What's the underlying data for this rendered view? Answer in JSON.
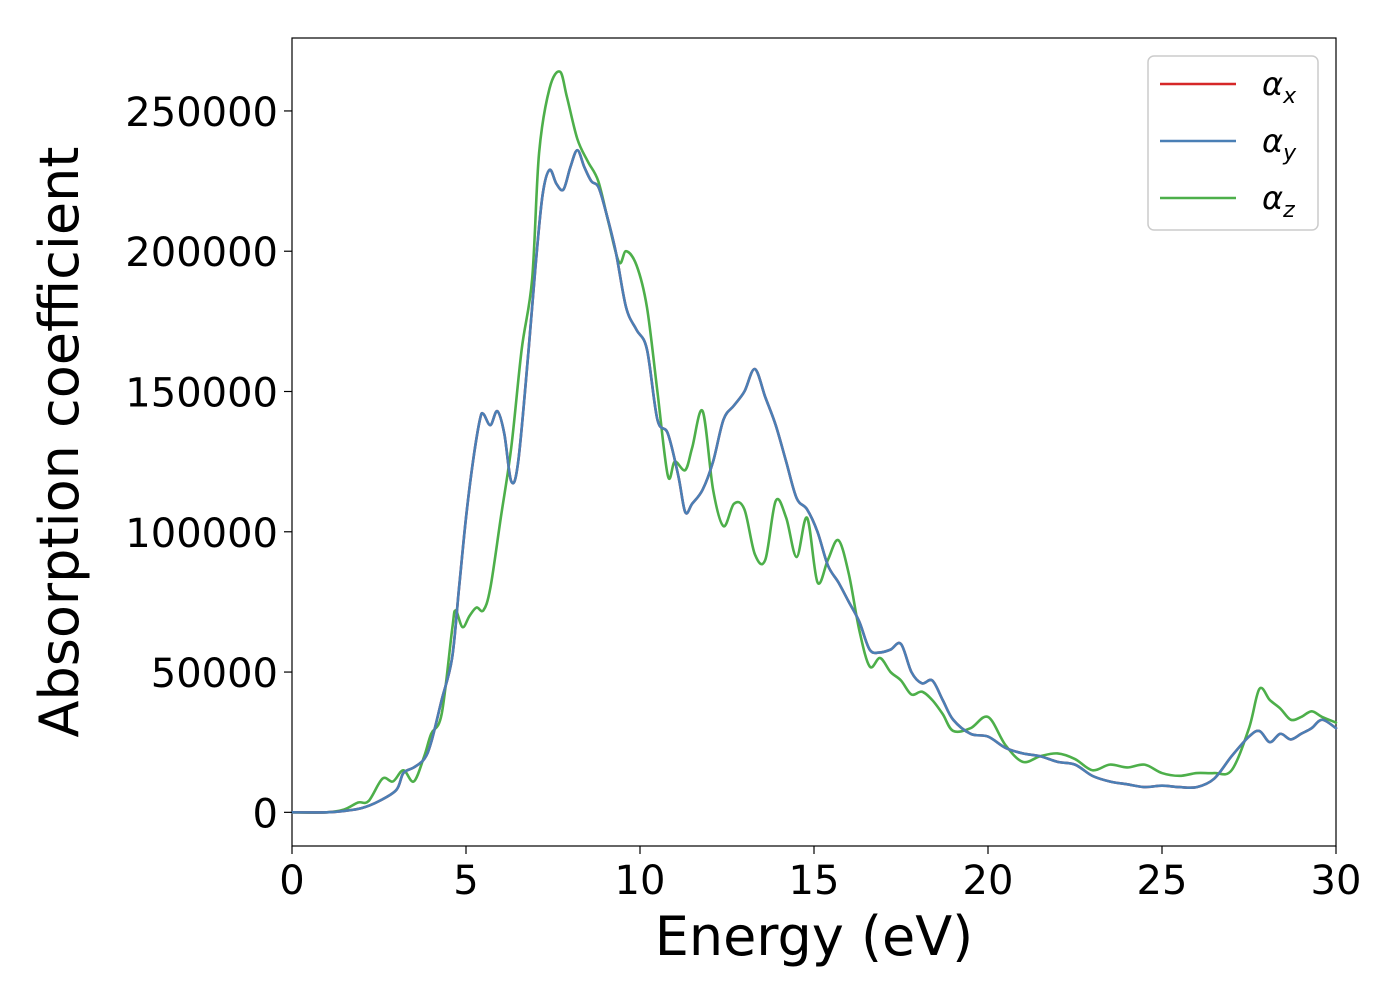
{
  "chart_data": {
    "type": "line",
    "title": "",
    "xlabel": "Energy (eV)",
    "ylabel": "Absorption coefficient",
    "xlim": [
      0,
      30
    ],
    "ylim": [
      -12000,
      276000
    ],
    "xticks": [
      0,
      5,
      10,
      15,
      20,
      25,
      30
    ],
    "xtick_labels": [
      "0",
      "5",
      "10",
      "15",
      "20",
      "25",
      "30"
    ],
    "yticks": [
      0,
      50000,
      100000,
      150000,
      200000,
      250000
    ],
    "ytick_labels": [
      "0",
      "50000",
      "100000",
      "150000",
      "200000",
      "250000"
    ],
    "grid": false,
    "legend_position": "top-right",
    "series": [
      {
        "name": "α",
        "subscript": "x",
        "color": "#d62728",
        "x": [
          0,
          1,
          1.5,
          2,
          2.5,
          3,
          3.2,
          3.5,
          3.8,
          4,
          4.3,
          4.6,
          4.8,
          5,
          5.2,
          5.4,
          5.5,
          5.7,
          5.9,
          6.1,
          6.3,
          6.5,
          6.8,
          7,
          7.2,
          7.4,
          7.6,
          7.8,
          8,
          8.2,
          8.4,
          8.6,
          8.8,
          9,
          9.3,
          9.6,
          9.9,
          10.2,
          10.5,
          10.8,
          11.1,
          11.3,
          11.5,
          11.8,
          12.1,
          12.4,
          12.7,
          13,
          13.3,
          13.6,
          13.9,
          14.2,
          14.5,
          14.8,
          15.1,
          15.4,
          15.7,
          16,
          16.3,
          16.6,
          16.9,
          17.2,
          17.5,
          17.8,
          18.1,
          18.4,
          18.7,
          19,
          19.5,
          20,
          20.5,
          21,
          21.5,
          22,
          22.5,
          23,
          23.5,
          24,
          24.5,
          25,
          25.5,
          26,
          26.5,
          27,
          27.5,
          27.8,
          28.1,
          28.4,
          28.7,
          29,
          29.3,
          29.6,
          30
        ],
        "values": [
          0,
          0,
          500,
          1500,
          4000,
          8000,
          14000,
          16000,
          19000,
          25000,
          40000,
          55000,
          80000,
          105000,
          125000,
          140000,
          142000,
          138000,
          143000,
          135000,
          118000,
          125000,
          165000,
          195000,
          220000,
          229000,
          224000,
          222000,
          230000,
          236000,
          230000,
          225000,
          223000,
          215000,
          200000,
          180000,
          172000,
          165000,
          140000,
          135000,
          120000,
          107000,
          110000,
          115000,
          125000,
          140000,
          145000,
          150000,
          158000,
          148000,
          138000,
          125000,
          112000,
          108000,
          100000,
          88000,
          82000,
          75000,
          68000,
          58000,
          57000,
          58000,
          60000,
          50000,
          46000,
          47000,
          40000,
          33000,
          28000,
          27000,
          23000,
          21000,
          20000,
          18000,
          17000,
          13000,
          11000,
          10000,
          9000,
          9500,
          9000,
          9000,
          12000,
          20000,
          27000,
          29000,
          25000,
          28000,
          26000,
          28000,
          30000,
          33000,
          30000
        ]
      },
      {
        "name": "α",
        "subscript": "y",
        "color": "#4a7fb5",
        "x": [
          0,
          1,
          1.5,
          2,
          2.5,
          3,
          3.2,
          3.5,
          3.8,
          4,
          4.3,
          4.6,
          4.8,
          5,
          5.2,
          5.4,
          5.5,
          5.7,
          5.9,
          6.1,
          6.3,
          6.5,
          6.8,
          7,
          7.2,
          7.4,
          7.6,
          7.8,
          8,
          8.2,
          8.4,
          8.6,
          8.8,
          9,
          9.3,
          9.6,
          9.9,
          10.2,
          10.5,
          10.8,
          11.1,
          11.3,
          11.5,
          11.8,
          12.1,
          12.4,
          12.7,
          13,
          13.3,
          13.6,
          13.9,
          14.2,
          14.5,
          14.8,
          15.1,
          15.4,
          15.7,
          16,
          16.3,
          16.6,
          16.9,
          17.2,
          17.5,
          17.8,
          18.1,
          18.4,
          18.7,
          19,
          19.5,
          20,
          20.5,
          21,
          21.5,
          22,
          22.5,
          23,
          23.5,
          24,
          24.5,
          25,
          25.5,
          26,
          26.5,
          27,
          27.5,
          27.8,
          28.1,
          28.4,
          28.7,
          29,
          29.3,
          29.6,
          30
        ],
        "values": [
          0,
          0,
          500,
          1500,
          4000,
          8000,
          14000,
          16000,
          19000,
          25000,
          40000,
          55000,
          80000,
          105000,
          125000,
          140000,
          142000,
          138000,
          143000,
          135000,
          118000,
          125000,
          165000,
          195000,
          220000,
          229000,
          224000,
          222000,
          230000,
          236000,
          230000,
          225000,
          223000,
          215000,
          200000,
          180000,
          172000,
          165000,
          140000,
          135000,
          120000,
          107000,
          110000,
          115000,
          125000,
          140000,
          145000,
          150000,
          158000,
          148000,
          138000,
          125000,
          112000,
          108000,
          100000,
          88000,
          82000,
          75000,
          68000,
          58000,
          57000,
          58000,
          60000,
          50000,
          46000,
          47000,
          40000,
          33000,
          28000,
          27000,
          23000,
          21000,
          20000,
          18000,
          17000,
          13000,
          11000,
          10000,
          9000,
          9500,
          9000,
          9000,
          12000,
          20000,
          27000,
          29000,
          25000,
          28000,
          26000,
          28000,
          30000,
          33000,
          30000
        ]
      },
      {
        "name": "α",
        "subscript": "z",
        "color": "#4daf4a",
        "x": [
          0,
          1,
          1.5,
          1.9,
          2.2,
          2.6,
          2.9,
          3.2,
          3.5,
          3.8,
          4,
          4.3,
          4.6,
          4.7,
          4.9,
          5.1,
          5.3,
          5.5,
          5.7,
          6,
          6.3,
          6.6,
          6.9,
          7.1,
          7.4,
          7.7,
          7.9,
          8.2,
          8.5,
          8.8,
          9.1,
          9.4,
          9.6,
          9.9,
          10.2,
          10.5,
          10.8,
          11,
          11.3,
          11.5,
          11.8,
          12.1,
          12.4,
          12.7,
          13,
          13.3,
          13.6,
          13.9,
          14.2,
          14.5,
          14.8,
          15.1,
          15.4,
          15.7,
          16,
          16.3,
          16.6,
          16.9,
          17.2,
          17.5,
          17.8,
          18.1,
          18.4,
          18.7,
          19,
          19.5,
          20,
          20.5,
          21,
          21.5,
          22,
          22.5,
          23,
          23.5,
          24,
          24.5,
          25,
          25.5,
          26,
          26.5,
          27,
          27.5,
          27.8,
          28.1,
          28.4,
          28.7,
          29,
          29.3,
          29.6,
          30
        ],
        "values": [
          0,
          0,
          1000,
          3500,
          4000,
          12000,
          11000,
          15000,
          11000,
          20000,
          28000,
          35000,
          65000,
          72000,
          66000,
          70000,
          73000,
          72000,
          80000,
          105000,
          130000,
          165000,
          190000,
          235000,
          258000,
          264000,
          255000,
          240000,
          232000,
          225000,
          210000,
          196000,
          200000,
          195000,
          180000,
          150000,
          120000,
          125000,
          122000,
          130000,
          143000,
          115000,
          102000,
          110000,
          108000,
          92000,
          90000,
          111000,
          105000,
          91000,
          105000,
          82000,
          90000,
          97000,
          85000,
          65000,
          52000,
          55000,
          50000,
          47000,
          42000,
          43000,
          40000,
          35000,
          29000,
          30000,
          34000,
          24000,
          18000,
          20000,
          21000,
          19000,
          15000,
          17000,
          16000,
          17000,
          14000,
          13000,
          14000,
          14000,
          15000,
          30000,
          44000,
          40000,
          37000,
          33000,
          34000,
          36000,
          34000,
          32000
        ]
      }
    ]
  }
}
